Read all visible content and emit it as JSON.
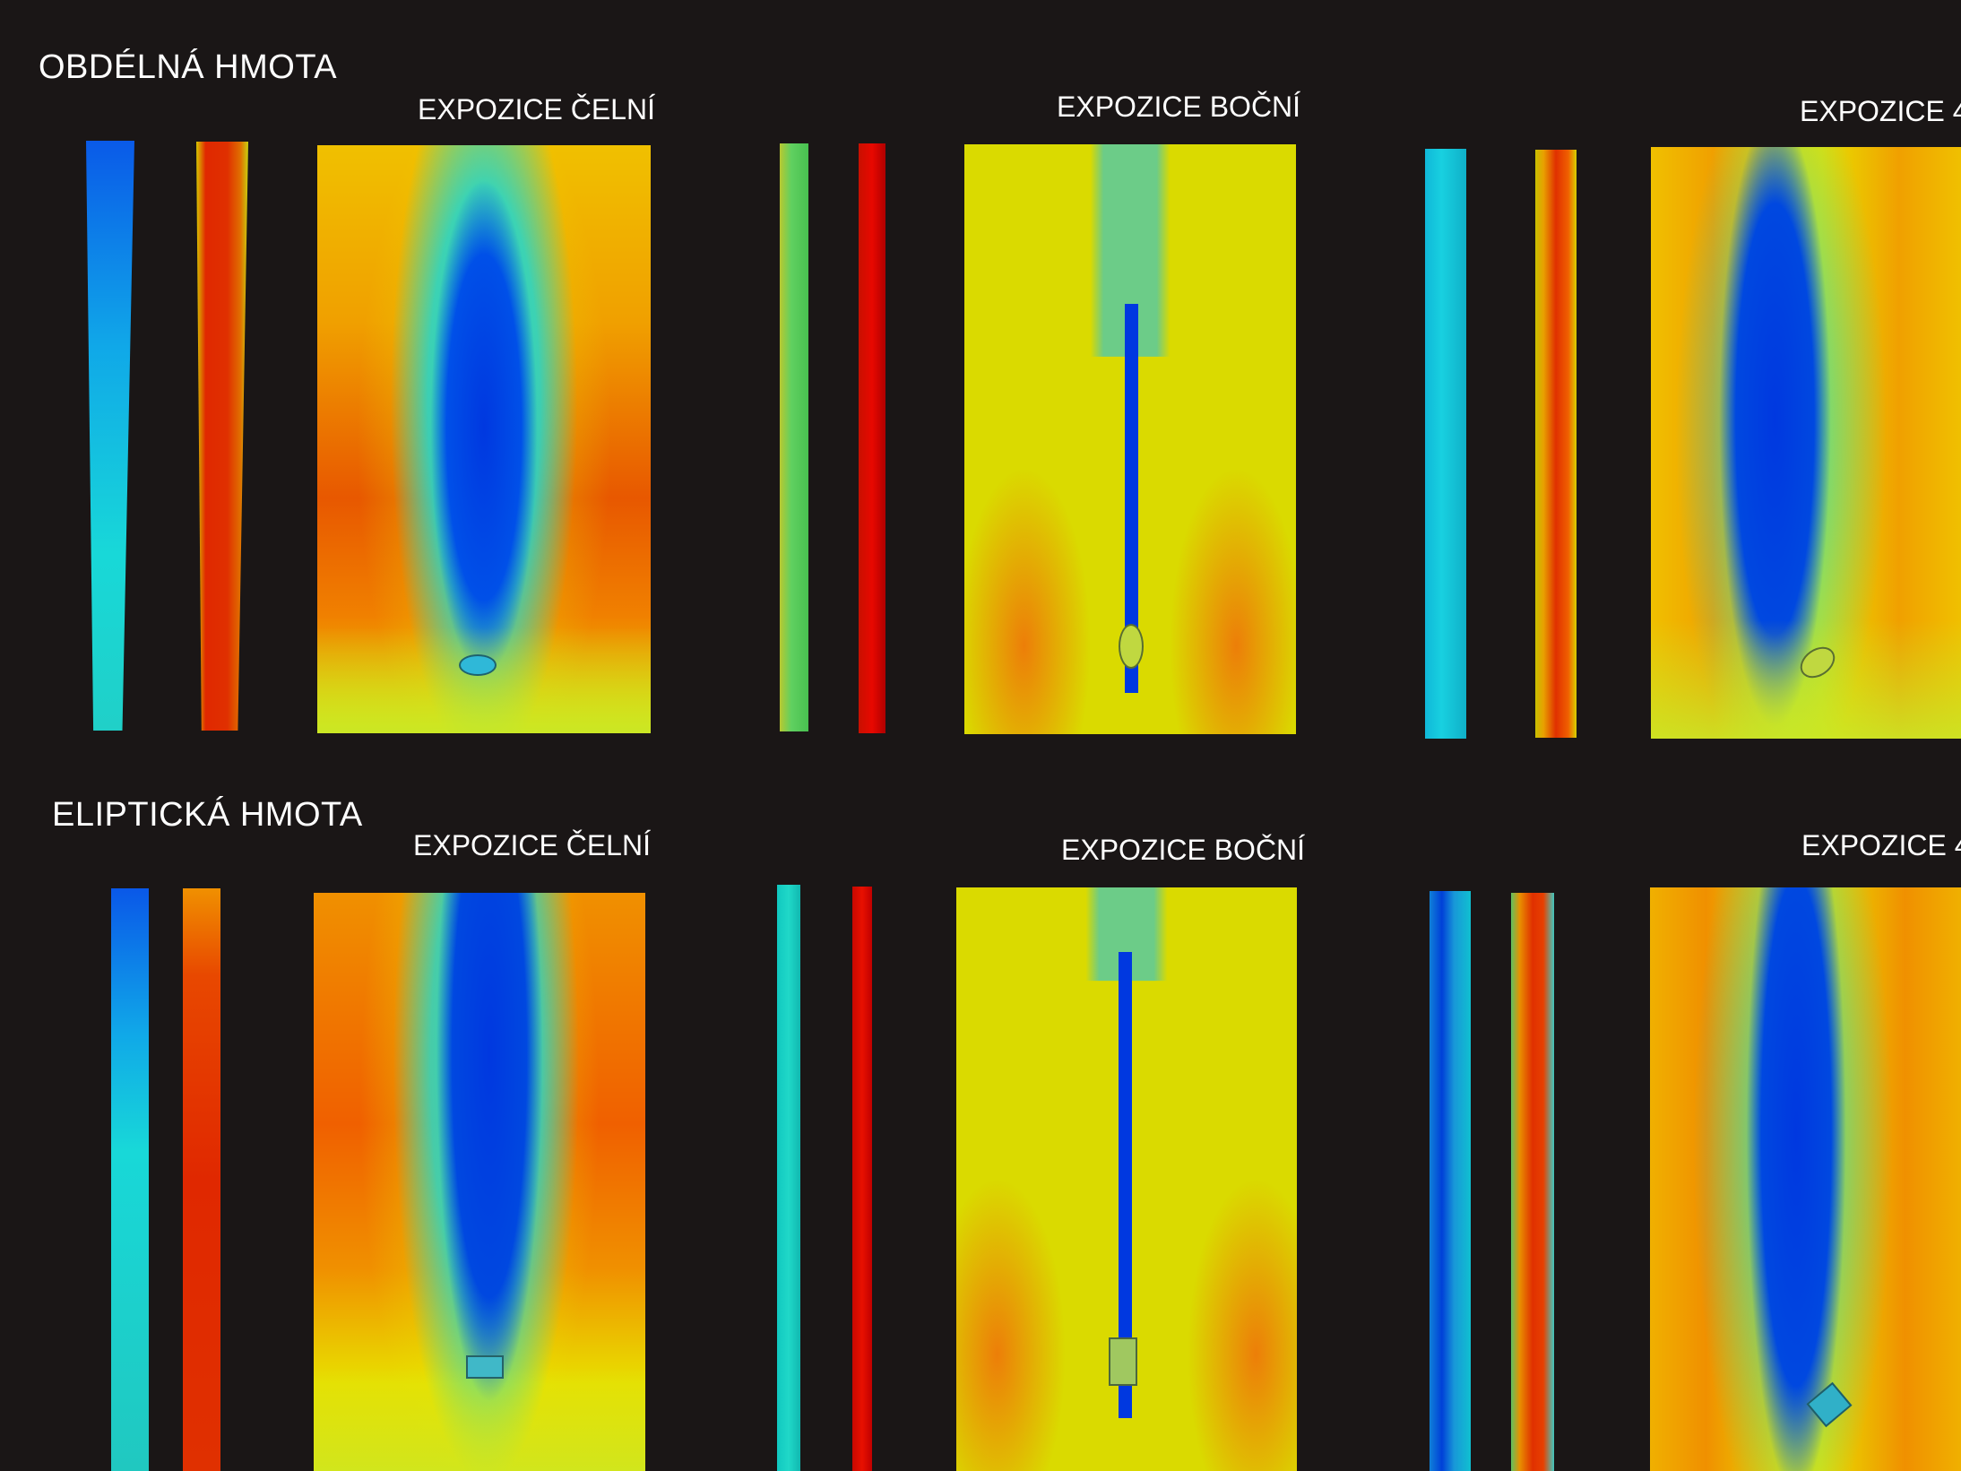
{
  "rows": [
    {
      "title": "OBDÉLNÁ HMOTA",
      "views": [
        {
          "label": "EXPOZICE ČELNÍ"
        },
        {
          "label": "EXPOZICE BOČNÍ"
        },
        {
          "label": "EXPOZICE 4"
        }
      ]
    },
    {
      "title": "ELIPTICKÁ HMOTA",
      "views": [
        {
          "label": "EXPOZICE ČELNÍ"
        },
        {
          "label": "EXPOZICE BOČNÍ"
        },
        {
          "label": "EXPOZICE 4"
        }
      ]
    }
  ],
  "colors": {
    "background": "#1a1616",
    "low": "#0038e0",
    "mid_low": "#10d8e0",
    "mid": "#e8e800",
    "mid_high": "#f08a10",
    "high": "#e02800"
  }
}
